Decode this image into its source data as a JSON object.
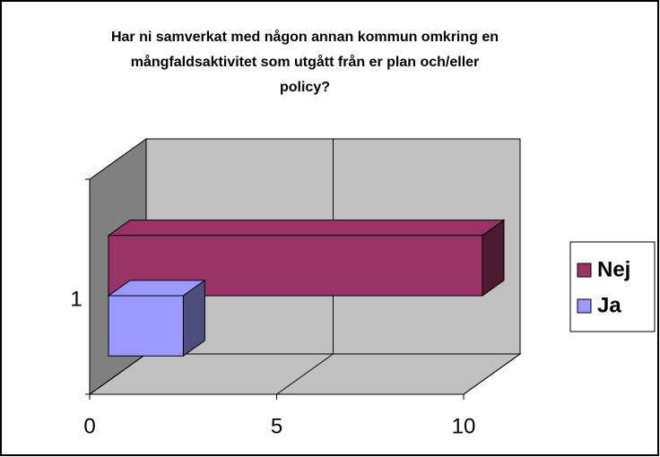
{
  "chart_data": {
    "type": "bar3d_horizontal",
    "title": "Har ni samverkat med någon annan kommun omkring en mångfaldsaktivitet som utgått från er plan och/eller policy?",
    "categories": [
      "1"
    ],
    "series": [
      {
        "name": "Nej",
        "color": "#993366",
        "values": [
          10
        ]
      },
      {
        "name": "Ja",
        "color": "#9999ff",
        "values": [
          2
        ]
      }
    ],
    "xlim": [
      0,
      10
    ],
    "xticks": [
      0,
      5,
      10
    ],
    "grid": true,
    "legend": "right"
  }
}
